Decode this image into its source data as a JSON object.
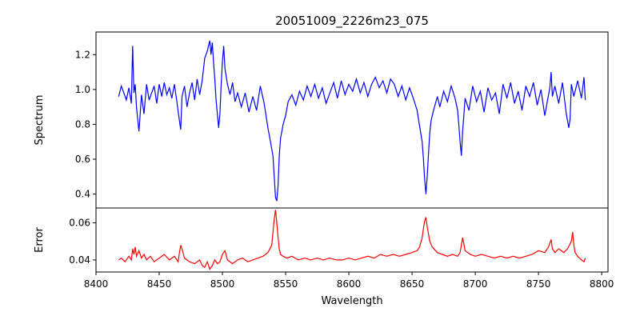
{
  "chart_data": {
    "type": "line",
    "title": "20051009_2226m23_075",
    "xlabel": "Wavelength",
    "xlim": [
      8400,
      8805
    ],
    "xticks": [
      8400,
      8450,
      8500,
      8550,
      8600,
      8650,
      8700,
      8750,
      8800
    ],
    "grid": false,
    "panels": [
      {
        "name": "spectrum",
        "ylabel": "Spectrum",
        "ylim": [
          0.32,
          1.33
        ],
        "yticks": [
          0.4,
          0.6,
          0.8,
          1.0,
          1.2
        ],
        "ytick_labels": [
          "0.4",
          "0.6",
          "0.8",
          "1.0",
          "1.2"
        ],
        "color": "#0000ff",
        "series": [
          {
            "x": [
              8418,
              8420,
              8422,
              8424,
              8426,
              8428,
              8429,
              8430,
              8431,
              8432,
              8433,
              8434,
              8436,
              8438,
              8440,
              8442,
              8444,
              8446,
              8448,
              8450,
              8452,
              8454,
              8456,
              8458,
              8460,
              8462,
              8464,
              8466,
              8467,
              8468,
              8470,
              8472,
              8474,
              8476,
              8478,
              8480,
              8482,
              8484,
              8486,
              8488,
              8489,
              8490,
              8491,
              8492,
              8493,
              8494,
              8495,
              8496,
              8497,
              8498,
              8499,
              8500,
              8501,
              8502,
              8504,
              8506,
              8508,
              8510,
              8512,
              8515,
              8518,
              8521,
              8524,
              8527,
              8530,
              8533,
              8536,
              8538,
              8540,
              8541,
              8542,
              8543,
              8544,
              8545,
              8546,
              8548,
              8550,
              8552,
              8555,
              8558,
              8561,
              8564,
              8567,
              8570,
              8573,
              8576,
              8579,
              8582,
              8585,
              8588,
              8591,
              8594,
              8597,
              8600,
              8603,
              8606,
              8609,
              8612,
              8615,
              8618,
              8621,
              8624,
              8627,
              8630,
              8633,
              8636,
              8639,
              8642,
              8645,
              8648,
              8651,
              8654,
              8656,
              8658,
              8659,
              8660,
              8661,
              8662,
              8663,
              8664,
              8665,
              8667,
              8670,
              8672,
              8675,
              8678,
              8681,
              8684,
              8686,
              8687,
              8688,
              8689,
              8690,
              8692,
              8695,
              8698,
              8701,
              8704,
              8707,
              8710,
              8713,
              8716,
              8719,
              8722,
              8725,
              8728,
              8731,
              8734,
              8737,
              8740,
              8743,
              8746,
              8749,
              8752,
              8755,
              8757,
              8759,
              8760,
              8761,
              8763,
              8766,
              8769,
              8772,
              8774,
              8775,
              8776,
              8778,
              8781,
              8784,
              8786,
              8787
            ],
            "y": [
              0.96,
              1.02,
              0.98,
              0.94,
              1.01,
              0.92,
              1.25,
              0.98,
              1.03,
              0.9,
              0.83,
              0.76,
              0.97,
              0.86,
              1.03,
              0.94,
              0.98,
              1.02,
              0.92,
              1.03,
              0.96,
              1.04,
              0.97,
              1.01,
              0.95,
              1.03,
              0.93,
              0.82,
              0.77,
              0.96,
              1.02,
              0.9,
              0.98,
              1.04,
              0.94,
              1.06,
              0.97,
              1.05,
              1.18,
              1.22,
              1.25,
              1.28,
              1.2,
              1.27,
              1.15,
              1.06,
              0.94,
              0.86,
              0.78,
              0.86,
              1.02,
              1.16,
              1.25,
              1.12,
              1.03,
              0.97,
              1.04,
              0.93,
              0.98,
              0.9,
              0.98,
              0.87,
              0.96,
              0.88,
              1.02,
              0.92,
              0.78,
              0.7,
              0.62,
              0.5,
              0.38,
              0.36,
              0.45,
              0.62,
              0.72,
              0.8,
              0.85,
              0.93,
              0.97,
              0.91,
              0.99,
              0.94,
              1.02,
              0.96,
              1.03,
              0.95,
              1.01,
              0.92,
              0.98,
              1.04,
              0.95,
              1.05,
              0.97,
              1.03,
              0.99,
              1.06,
              0.98,
              1.04,
              0.96,
              1.03,
              1.07,
              1.01,
              1.05,
              0.98,
              1.06,
              1.03,
              0.96,
              1.02,
              0.94,
              1.01,
              0.95,
              0.88,
              0.79,
              0.7,
              0.6,
              0.48,
              0.4,
              0.5,
              0.63,
              0.75,
              0.82,
              0.88,
              0.96,
              0.9,
              0.99,
              0.93,
              1.02,
              0.95,
              0.88,
              0.8,
              0.7,
              0.62,
              0.76,
              0.95,
              0.88,
              1.02,
              0.93,
              0.99,
              0.87,
              1.01,
              0.94,
              0.98,
              0.86,
              1.03,
              0.95,
              1.04,
              0.92,
              0.99,
              0.88,
              1.02,
              0.96,
              1.04,
              0.91,
              1.0,
              0.85,
              0.93,
              1.01,
              1.1,
              0.96,
              1.02,
              0.92,
              1.04,
              0.86,
              0.78,
              0.83,
              1.03,
              0.96,
              1.05,
              0.95,
              1.07,
              0.94
            ]
          }
        ]
      },
      {
        "name": "error",
        "ylabel": "Error",
        "ylim": [
          0.0335,
          0.068
        ],
        "yticks": [
          0.04,
          0.06
        ],
        "ytick_labels": [
          "0.04",
          "0.06"
        ],
        "color": "#ff0000",
        "series": [
          {
            "x": [
              8418,
              8420,
              8423,
              8426,
              8428,
              8429,
              8430,
              8431,
              8432,
              8434,
              8436,
              8438,
              8440,
              8443,
              8446,
              8450,
              8454,
              8458,
              8462,
              8465,
              8466,
              8467,
              8468,
              8470,
              8474,
              8478,
              8482,
              8484,
              8486,
              8488,
              8490,
              8492,
              8494,
              8496,
              8498,
              8500,
              8502,
              8504,
              8508,
              8512,
              8516,
              8520,
              8524,
              8528,
              8532,
              8536,
              8539,
              8540,
              8541,
              8542,
              8543,
              8544,
              8545,
              8546,
              8548,
              8551,
              8555,
              8560,
              8565,
              8570,
              8575,
              8580,
              8585,
              8590,
              8595,
              8600,
              8605,
              8610,
              8615,
              8620,
              8625,
              8630,
              8635,
              8640,
              8645,
              8650,
              8654,
              8656,
              8658,
              8659,
              8660,
              8661,
              8662,
              8663,
              8664,
              8666,
              8670,
              8674,
              8678,
              8682,
              8686,
              8688,
              8689,
              8690,
              8692,
              8696,
              8700,
              8705,
              8710,
              8715,
              8720,
              8725,
              8730,
              8735,
              8740,
              8745,
              8750,
              8755,
              8758,
              8760,
              8761,
              8763,
              8766,
              8770,
              8773,
              8776,
              8777,
              8778,
              8779,
              8781,
              8784,
              8786,
              8787
            ],
            "y": [
              0.04,
              0.041,
              0.039,
              0.042,
              0.04,
              0.046,
              0.043,
              0.047,
              0.042,
              0.045,
              0.041,
              0.043,
              0.04,
              0.042,
              0.039,
              0.041,
              0.043,
              0.04,
              0.042,
              0.039,
              0.044,
              0.048,
              0.046,
              0.041,
              0.039,
              0.038,
              0.04,
              0.037,
              0.036,
              0.039,
              0.035,
              0.037,
              0.04,
              0.038,
              0.039,
              0.043,
              0.045,
              0.04,
              0.038,
              0.04,
              0.041,
              0.039,
              0.04,
              0.041,
              0.042,
              0.044,
              0.048,
              0.055,
              0.062,
              0.067,
              0.06,
              0.052,
              0.046,
              0.043,
              0.042,
              0.041,
              0.042,
              0.04,
              0.041,
              0.04,
              0.041,
              0.04,
              0.041,
              0.04,
              0.04,
              0.041,
              0.04,
              0.041,
              0.042,
              0.041,
              0.043,
              0.042,
              0.043,
              0.042,
              0.043,
              0.044,
              0.045,
              0.047,
              0.052,
              0.057,
              0.061,
              0.063,
              0.058,
              0.054,
              0.05,
              0.047,
              0.044,
              0.043,
              0.042,
              0.043,
              0.042,
              0.044,
              0.048,
              0.052,
              0.045,
              0.043,
              0.042,
              0.043,
              0.042,
              0.041,
              0.042,
              0.041,
              0.042,
              0.041,
              0.042,
              0.043,
              0.045,
              0.044,
              0.047,
              0.051,
              0.046,
              0.044,
              0.046,
              0.044,
              0.046,
              0.05,
              0.055,
              0.048,
              0.044,
              0.042,
              0.04,
              0.039,
              0.041
            ]
          }
        ]
      }
    ]
  }
}
